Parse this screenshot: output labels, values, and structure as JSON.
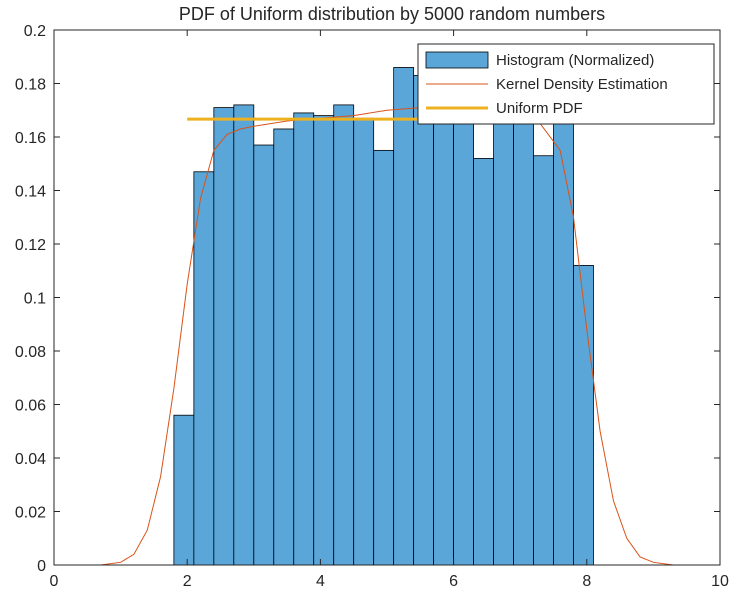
{
  "chart_data": {
    "type": "bar",
    "title": "PDF of Uniform distribution by 5000 random numbers",
    "xlabel": "",
    "ylabel": "",
    "xlim": [
      0,
      10
    ],
    "ylim": [
      0,
      0.2
    ],
    "xticks": [
      0,
      2,
      4,
      6,
      8,
      10
    ],
    "yticks": [
      0,
      0.02,
      0.04,
      0.06,
      0.08,
      0.1,
      0.12,
      0.14,
      0.16,
      0.18,
      0.2
    ],
    "grid": false,
    "legend_position": "top-right",
    "legend": [
      "Histogram (Normalized)",
      "Kernel Density Estimation",
      "Uniform PDF"
    ],
    "colors": {
      "bars": "#5BA6D9",
      "bar_edge": "#000000",
      "kde": "#D95319",
      "uniform": "#EDB120"
    },
    "series": [
      {
        "name": "Histogram (Normalized)",
        "type": "histogram",
        "bin_edges": [
          1.8,
          2.1,
          2.4,
          2.7,
          3.0,
          3.3,
          3.6,
          3.9,
          4.2,
          4.5,
          4.8,
          5.1,
          5.4,
          5.7,
          6.0,
          6.3,
          6.6,
          6.9,
          7.2,
          7.5,
          7.8,
          8.1
        ],
        "values": [
          0.056,
          0.147,
          0.171,
          0.172,
          0.157,
          0.163,
          0.169,
          0.168,
          0.172,
          0.167,
          0.155,
          0.186,
          0.183,
          0.177,
          0.178,
          0.152,
          0.171,
          0.17,
          0.153,
          0.171,
          0.112
        ]
      },
      {
        "name": "Kernel Density Estimation",
        "type": "line",
        "x": [
          0.7,
          1.0,
          1.2,
          1.4,
          1.6,
          1.8,
          2.0,
          2.2,
          2.4,
          2.6,
          2.8,
          3.0,
          3.5,
          4.0,
          4.5,
          5.0,
          5.5,
          6.0,
          6.5,
          7.0,
          7.3,
          7.6,
          7.8,
          8.0,
          8.2,
          8.4,
          8.6,
          8.8,
          9.0,
          9.3
        ],
        "y": [
          0.0,
          0.001,
          0.004,
          0.013,
          0.033,
          0.066,
          0.105,
          0.137,
          0.155,
          0.161,
          0.163,
          0.164,
          0.166,
          0.167,
          0.168,
          0.17,
          0.171,
          0.171,
          0.17,
          0.168,
          0.165,
          0.155,
          0.13,
          0.088,
          0.05,
          0.024,
          0.01,
          0.003,
          0.001,
          0.0
        ]
      },
      {
        "name": "Uniform PDF",
        "type": "line",
        "x": [
          2,
          8
        ],
        "y": [
          0.1667,
          0.1667
        ]
      }
    ]
  }
}
